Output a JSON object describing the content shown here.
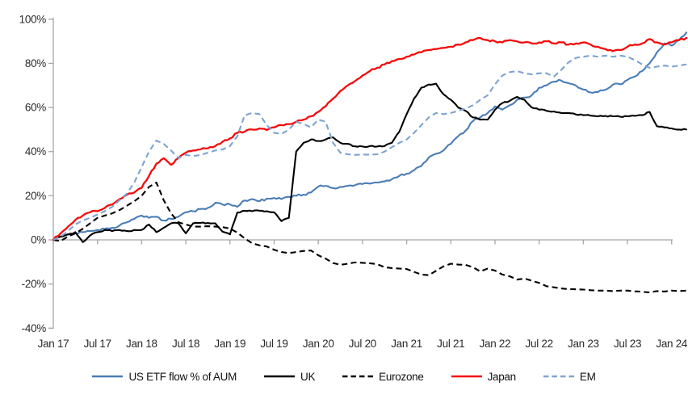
{
  "chart_data": {
    "type": "line",
    "title": "",
    "xlabel": "",
    "ylabel": "",
    "ylim": [
      -40,
      100
    ],
    "grid": false,
    "legend_position": "bottom",
    "x_unit": "months since Jan 2017, monthly points",
    "x_tick_step_months": 6,
    "x_tick_labels": [
      "Jan 17",
      "Jul 17",
      "Jan 18",
      "Jul 18",
      "Jan 19",
      "Jul 19",
      "Jan 20",
      "Jul 20",
      "Jan 21",
      "Jul 21",
      "Jan 22",
      "Jul 22",
      "Jan 23",
      "Jul 23",
      "Jan 24"
    ],
    "y_ticks": [
      {
        "v": 100,
        "label": "100%"
      },
      {
        "v": 80,
        "label": "80%"
      },
      {
        "v": 60,
        "label": "60%"
      },
      {
        "v": 40,
        "label": "40%"
      },
      {
        "v": 20,
        "label": "20%"
      },
      {
        "v": 0,
        "label": "0%"
      },
      {
        "v": -20,
        "label": "-20%"
      },
      {
        "v": -40,
        "label": "-40%"
      }
    ],
    "axis_color": "#a6a6a6",
    "series": [
      {
        "name": "US ETF flow % of AUM",
        "color": "#4a7db5",
        "style": "solid",
        "values": [
          0,
          1.5,
          2.5,
          3,
          3.5,
          4,
          4.5,
          5,
          5.5,
          6.5,
          8,
          9.5,
          11,
          10,
          10.5,
          8.8,
          9.5,
          10.5,
          12.5,
          13,
          14,
          14.5,
          16.8,
          16,
          16.1,
          15,
          17.9,
          18.5,
          17.5,
          18.7,
          19,
          18.5,
          19.5,
          20,
          20.5,
          21.5,
          24.2,
          24.5,
          23.5,
          24,
          24.5,
          24.8,
          25.3,
          25.5,
          26,
          26.5,
          27.5,
          29,
          30,
          31.5,
          33.5,
          37.3,
          39,
          40.5,
          43.5,
          47,
          49.5,
          53.8,
          55.5,
          57.5,
          60.5,
          59,
          61,
          63.5,
          64.5,
          65.5,
          69,
          70,
          71.7,
          72.2,
          71,
          69.9,
          68.1,
          66.8,
          67,
          68,
          70.3,
          70.5,
          72.5,
          74,
          76.5,
          80,
          85,
          89,
          88,
          90.5,
          94
        ]
      },
      {
        "name": "UK",
        "color": "#000000",
        "style": "solid",
        "values": [
          0,
          1.5,
          2.5,
          3.5,
          -1,
          2,
          3.5,
          4.5,
          4,
          4.5,
          4,
          4.5,
          4.5,
          7,
          3.5,
          5.5,
          7.5,
          7.5,
          3,
          7.5,
          7.7,
          7.7,
          7.5,
          3.7,
          2.5,
          12.4,
          13.2,
          13,
          13.2,
          13,
          12.5,
          8.5,
          10,
          40,
          44,
          45.5,
          44.8,
          45.5,
          46.5,
          44,
          43.5,
          42.4,
          42.3,
          42.5,
          42.3,
          42.5,
          44,
          49,
          57,
          64,
          69,
          70.4,
          70.8,
          66,
          63.5,
          60,
          58.5,
          55.5,
          54.5,
          54.5,
          59,
          62,
          63,
          64.8,
          63.5,
          60,
          59,
          58.5,
          58.2,
          57.5,
          57.5,
          56.8,
          56.5,
          56.3,
          56,
          56.2,
          56,
          55.8,
          56,
          56.2,
          56.5,
          58,
          51.5,
          51,
          50.5,
          50,
          50
        ]
      },
      {
        "name": "Eurozone",
        "color": "#000000",
        "style": "dashed",
        "values": [
          0,
          -0.5,
          1.5,
          3,
          5,
          7.5,
          10,
          11,
          12,
          13.5,
          15.5,
          17.5,
          20,
          24,
          26,
          18,
          12,
          8,
          7,
          6,
          6,
          6.2,
          6,
          5.8,
          5.1,
          3.3,
          0.7,
          -1.5,
          -2.5,
          -3,
          -4.5,
          -5.5,
          -6,
          -5.5,
          -5,
          -4.8,
          -7,
          -8.5,
          -10.5,
          -11.3,
          -10.8,
          -10.2,
          -10.4,
          -10.6,
          -11,
          -12.4,
          -12.8,
          -13,
          -13.2,
          -14.5,
          -15.7,
          -16,
          -14,
          -12,
          -10.8,
          -11.2,
          -11.3,
          -12.4,
          -14.3,
          -13,
          -13.9,
          -15.7,
          -16.5,
          -18,
          -17.5,
          -18.5,
          -19.5,
          -21,
          -21.5,
          -22,
          -22.3,
          -22.4,
          -22.5,
          -22.8,
          -23,
          -23,
          -23.2,
          -23,
          -23,
          -23.3,
          -23.5,
          -23.8,
          -23.2,
          -23.4,
          -23,
          -23.2,
          -23
        ]
      },
      {
        "name": "Japan",
        "color": "#f40b0b",
        "style": "solid",
        "values": [
          0,
          3,
          6,
          9,
          11,
          12.5,
          13,
          14.5,
          16,
          18.5,
          20.5,
          21.5,
          23.5,
          29,
          34.5,
          37,
          34,
          37,
          39.5,
          40.5,
          41,
          41.5,
          42.5,
          44.5,
          46,
          48.5,
          49,
          50,
          50.5,
          49.8,
          51,
          52,
          52.5,
          53.5,
          54.5,
          56,
          58,
          60.5,
          64,
          67.5,
          70,
          72,
          74.5,
          76.5,
          78,
          79.5,
          81,
          82,
          83,
          84,
          85,
          86,
          86.5,
          87,
          87.5,
          88.5,
          89.5,
          90.5,
          91.5,
          90.5,
          90,
          89.5,
          90.5,
          90,
          89.5,
          89,
          89.5,
          90,
          89,
          89.5,
          88.5,
          89,
          89.5,
          88.5,
          87.5,
          86.5,
          85.5,
          86,
          87.5,
          88.5,
          89,
          91,
          89.5,
          88.5,
          89.5,
          90.5,
          91.5
        ]
      },
      {
        "name": "EM",
        "color": "#7da3d2",
        "style": "dashed",
        "values": [
          0,
          1.5,
          4,
          7,
          8.8,
          10,
          11.5,
          13,
          15,
          18,
          21,
          26,
          33,
          40,
          45,
          43.5,
          40.5,
          37,
          38.5,
          38,
          38.5,
          39.5,
          40.5,
          41,
          42.5,
          47,
          56.5,
          57.5,
          57,
          52,
          48.5,
          48,
          50,
          53.5,
          52.5,
          51,
          54.5,
          53.5,
          44,
          39.5,
          38.8,
          38.5,
          38.7,
          38.6,
          38.8,
          40,
          42,
          44,
          45.5,
          48.5,
          52,
          55.5,
          57.5,
          57,
          57.5,
          58.5,
          59.5,
          61,
          63.5,
          65.5,
          70.5,
          74.5,
          76,
          76.5,
          75.5,
          75,
          75.5,
          75.5,
          74,
          77,
          80.5,
          82.5,
          83,
          83.5,
          83,
          83.5,
          83,
          83.5,
          83,
          81.5,
          79.5,
          78,
          78.5,
          79,
          78.5,
          79,
          79.5
        ]
      }
    ]
  }
}
